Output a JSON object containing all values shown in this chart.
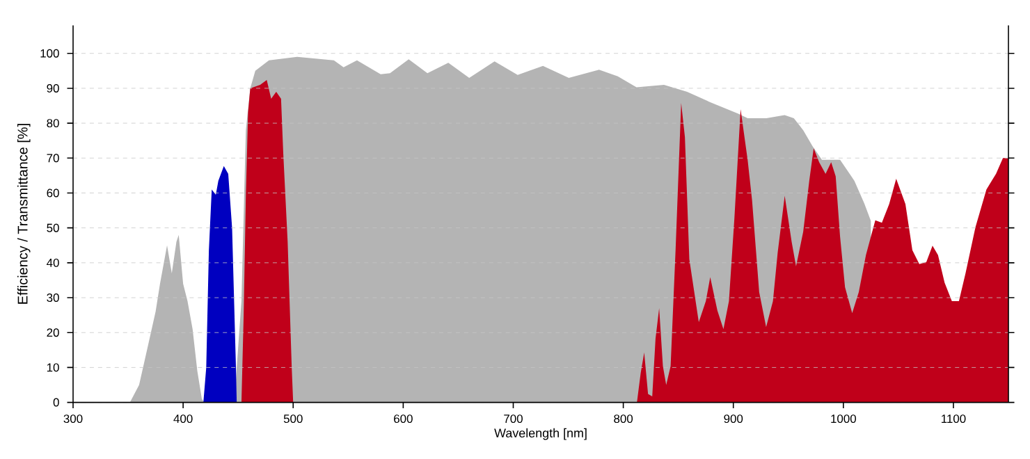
{
  "chart_data": {
    "type": "area",
    "xlabel": "Wavelength [nm]",
    "ylabel": "Efficiency / Transmittance [%]",
    "xlim": [
      300,
      1150
    ],
    "ylim": [
      0,
      108
    ],
    "xticks": [
      300,
      400,
      500,
      600,
      700,
      800,
      900,
      1000,
      1100
    ],
    "yticks": [
      0,
      10,
      20,
      30,
      40,
      50,
      60,
      70,
      80,
      90,
      100
    ],
    "grid": "y",
    "series": [
      {
        "color": "#b4b4b4",
        "x": [
          351.7,
          360,
          368.6,
          375,
          379,
          385.4,
          389.7,
          393.9,
          396,
          400,
          404,
          408.6,
          412.9,
          417,
          419
        ],
        "values": [
          0,
          5,
          17,
          26,
          34,
          45,
          37,
          46,
          48,
          34,
          29,
          21,
          9,
          1,
          0
        ]
      },
      {
        "color": "#b4b4b4",
        "x": [
          446.6,
          448.7,
          453,
          457,
          461,
          465.6,
          478,
          503.6,
          537,
          545.8,
          558,
          579.5,
          588,
          605,
          622,
          641,
          660,
          683,
          704,
          727,
          750.5,
          778,
          795,
          812,
          837,
          858,
          879,
          904.5,
          913,
          930,
          946.6,
          955,
          963.5,
          972,
          980.5,
          997,
          1010,
          1019,
          1025
        ],
        "values": [
          0,
          10,
          29,
          78,
          90,
          95,
          98,
          99,
          98,
          96,
          98,
          94,
          94.3,
          98.3,
          94.3,
          97.3,
          93,
          97.7,
          93.8,
          96.4,
          93,
          95.3,
          93.4,
          90.3,
          91,
          89,
          86,
          82.7,
          81.4,
          81.4,
          82.3,
          81.4,
          78,
          73.4,
          69.5,
          69.5,
          63.5,
          57,
          52
        ]
      },
      {
        "color": "#0000c0",
        "x": [
          418.4,
          421,
          423.4,
          426,
          429.7,
          432,
          437,
          441,
          444.5,
          448,
          448.7
        ],
        "values": [
          0,
          10,
          43.6,
          61,
          59.5,
          63.5,
          67.7,
          65.5,
          50,
          10,
          0
        ]
      },
      {
        "color": "#c0001a",
        "x": [
          453,
          455,
          457,
          459,
          461,
          470,
          476,
          480,
          484.6,
          489,
          491,
          495,
          498.7,
          500
        ],
        "values": [
          0,
          25,
          59,
          83,
          90,
          91,
          92.4,
          87,
          89,
          87,
          71.4,
          46,
          10,
          0
        ]
      },
      {
        "color": "#c0001a",
        "x": [
          812.4,
          815.8,
          819,
          822.5,
          826.3,
          829.3,
          832.6,
          836,
          839,
          843,
          847.5,
          852.6,
          856,
          860,
          868.6,
          875,
          879,
          885.5,
          891,
          896,
          901,
          906.6,
          913,
          917,
          923.5,
          929.8,
          936,
          940.3,
          946.7,
          953,
          957,
          963.5,
          969,
          973,
          978,
          983.8,
          988.9,
          993,
          997,
          1001.5,
          1008,
          1014,
          1020.5,
          1029,
          1035,
          1041.6,
          1048,
          1056.4,
          1062.7,
          1069,
          1075.4,
          1081,
          1086,
          1092,
          1098.6,
          1105,
          1111,
          1120,
          1130,
          1138.7,
          1145,
          1150
        ],
        "values": [
          0,
          8.4,
          14.3,
          2.4,
          1.7,
          18.3,
          27,
          10.4,
          5,
          10.4,
          43.6,
          85.8,
          76,
          41,
          23,
          29,
          35.9,
          26.3,
          21,
          29,
          52.9,
          84,
          69.5,
          58,
          31.6,
          21.6,
          29,
          42.9,
          59.2,
          46,
          39,
          48.9,
          63.5,
          72.8,
          68.8,
          65.5,
          68.8,
          64.8,
          47.5,
          33,
          25.6,
          31.6,
          42.2,
          52.2,
          51.5,
          56.8,
          64.1,
          56.8,
          43.6,
          39.6,
          40.2,
          44.9,
          42.2,
          34.3,
          29,
          29,
          37,
          50.2,
          61,
          65.5,
          70,
          70
        ]
      }
    ]
  }
}
